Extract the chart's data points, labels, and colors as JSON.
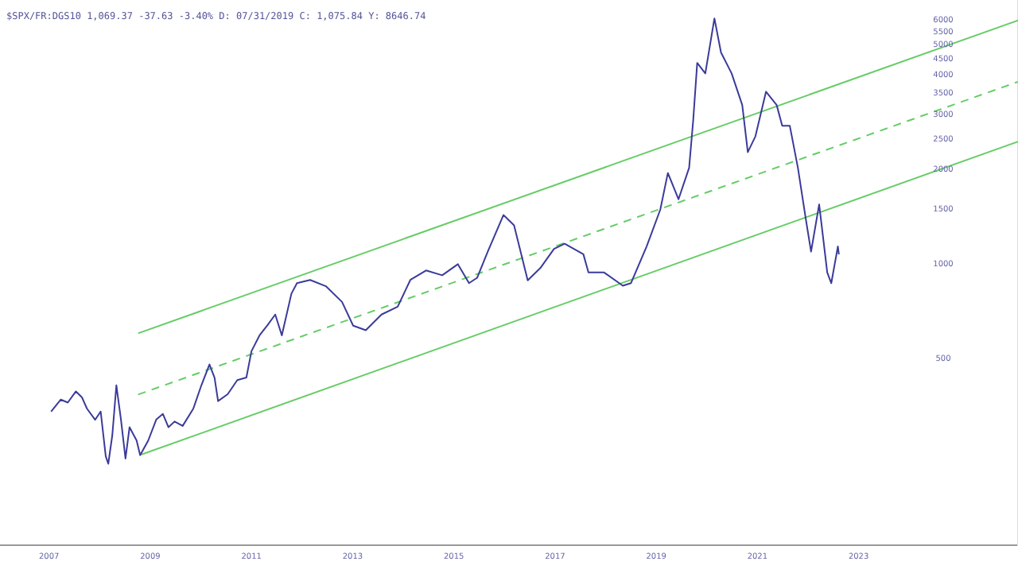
{
  "chart_data": {
    "type": "line",
    "title": "$SPX/FR:DGS10 1,069.37 -37.63 -3.40% D: 07/31/2019 C: 1,075.84 Y: 8646.74",
    "log": "y",
    "grid": false,
    "legend": false,
    "marker": "none",
    "xlim": [
      2006.03,
      2026.15
    ],
    "xticks": [
      2007,
      2009,
      2011,
      2013,
      2015,
      2017,
      2019,
      2021,
      2023
    ],
    "ylim": [
      127,
      6960
    ],
    "yticks": [
      500,
      1000,
      1500,
      2000,
      2500,
      3000,
      3500,
      4000,
      4500,
      5000,
      5500,
      6000
    ],
    "series": [
      {
        "color": "#3b3b9a",
        "x": [
          2007.04,
          2007.23,
          2007.37,
          2007.53,
          2007.65,
          2007.75,
          2007.91,
          2008.02,
          2008.12,
          2008.17,
          2008.25,
          2008.33,
          2008.42,
          2008.51,
          2008.59,
          2008.73,
          2008.8,
          2008.96,
          2009.12,
          2009.25,
          2009.36,
          2009.48,
          2009.64,
          2009.85,
          2010.01,
          2010.17,
          2010.27,
          2010.34,
          2010.53,
          2010.72,
          2010.9,
          2011.0,
          2011.16,
          2011.32,
          2011.47,
          2011.6,
          2011.79,
          2011.9,
          2012.16,
          2012.47,
          2012.79,
          2013.01,
          2013.26,
          2013.57,
          2013.89,
          2014.14,
          2014.45,
          2014.77,
          2015.08,
          2015.3,
          2015.46,
          2015.67,
          2015.98,
          2016.19,
          2016.46,
          2016.72,
          2016.98,
          2017.19,
          2017.56,
          2017.66,
          2017.97,
          2018.34,
          2018.5,
          2018.81,
          2019.08,
          2019.23,
          2019.44,
          2019.65,
          2019.73,
          2019.81,
          2019.97,
          2020.15,
          2020.28,
          2020.49,
          2020.7,
          2020.81,
          2020.96,
          2021.17,
          2021.38,
          2021.49,
          2021.64,
          2021.8,
          2021.96,
          2022.06,
          2022.22,
          2022.38,
          2022.46,
          2022.59,
          2022.61
        ],
        "values": [
          339,
          370,
          362,
          393,
          376,
          346,
          319,
          339,
          244,
          231,
          285,
          411,
          320,
          240,
          302,
          274,
          246,
          274,
          320,
          333,
          302,
          315,
          305,
          346,
          411,
          479,
          435,
          366,
          385,
          427,
          435,
          528,
          593,
          640,
          691,
          593,
          806,
          870,
          891,
          851,
          758,
          637,
          616,
          691,
          732,
          891,
          955,
          922,
          1000,
          870,
          905,
          1097,
          1435,
          1330,
          888,
          977,
          1119,
          1162,
          1076,
          941,
          941,
          854,
          870,
          1139,
          1493,
          1954,
          1611,
          2030,
          2869,
          4385,
          4059,
          6080,
          4735,
          4059,
          3219,
          2277,
          2557,
          3550,
          3219,
          2762,
          2762,
          2030,
          1381,
          1097,
          1551,
          941,
          870,
          1139,
          1075
        ]
      },
      {
        "type": "line",
        "color": "#66cc66",
        "x": [
          2008.76,
          2026.15
        ],
        "values": [
          602,
          5990
        ]
      },
      {
        "type": "line",
        "color": "#66cc66",
        "line_style": "dashed",
        "x": [
          2008.76,
          2026.15
        ],
        "values": [
          384,
          3818
        ]
      },
      {
        "type": "line",
        "color": "#66cc66",
        "x": [
          2008.82,
          2026.15
        ],
        "values": [
          247,
          2460
        ]
      }
    ]
  }
}
